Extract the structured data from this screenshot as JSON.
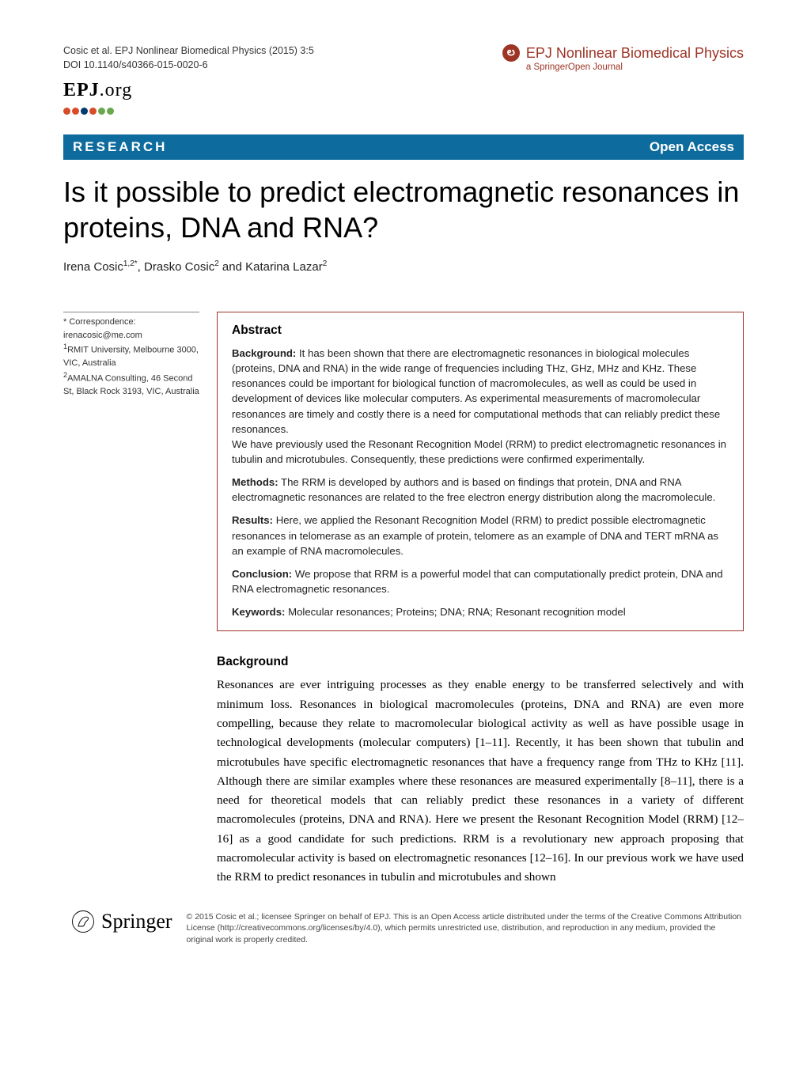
{
  "header": {
    "citation_line1": "Cosic et al. EPJ Nonlinear Biomedical Physics  (2015) 3:5",
    "citation_line2": "DOI 10.1140/s40366-015-0020-6",
    "epj_label": "EPJ",
    "epj_suffix": ".org",
    "journal_icon_glyph": "ల",
    "journal_name": "EPJ Nonlinear Biomedical Physics",
    "journal_subtitle": "a SpringerOpen Journal"
  },
  "dots": {
    "colors": [
      "#d94c2a",
      "#d94c2a",
      "#003a70",
      "#d94c2a",
      "#6aa84f",
      "#6aa84f"
    ]
  },
  "bar": {
    "research": "RESEARCH",
    "open_access": "Open Access"
  },
  "title": "Is it possible to predict electromagnetic resonances in proteins, DNA and RNA?",
  "authors_html": "Irena Cosic<sup>1,2*</sup>, Drasko Cosic<sup>2</sup> and Katarina Lazar<sup>2</sup>",
  "correspondence": {
    "label": "* Correspondence:",
    "email": "irenacosic@me.com",
    "aff1": "<sup>1</sup>RMIT University, Melbourne 3000, VIC, Australia",
    "aff2": "<sup>2</sup>AMALNA Consulting, 46 Second St, Black Rock 3193, VIC, Australia"
  },
  "abstract": {
    "heading": "Abstract",
    "background_label": "Background:",
    "background_text": " It has been shown that there are electromagnetic resonances in biological molecules (proteins, DNA and RNA) in the wide range of frequencies including THz, GHz, MHz and KHz. These resonances could be important for biological function of macromolecules, as well as could be used in development of devices like molecular computers. As experimental measurements of macromolecular resonances are timely and costly there is a need for computational methods that can reliably predict these resonances.",
    "background_text2": "We have previously used the Resonant Recognition Model (RRM) to predict electromagnetic resonances in tubulin and microtubules. Consequently, these predictions were confirmed experimentally.",
    "methods_label": "Methods:",
    "methods_text": " The RRM is developed by authors and is based on findings that protein, DNA and RNA electromagnetic resonances are related to the free electron energy distribution along the macromolecule.",
    "results_label": "Results:",
    "results_text": " Here, we applied the Resonant Recognition Model (RRM) to predict possible electromagnetic resonances in telomerase as an example of protein, telomere as an example of DNA and TERT mRNA as an example of RNA macromolecules.",
    "conclusion_label": "Conclusion:",
    "conclusion_text": " We propose that RRM is a powerful model that can computationally predict protein, DNA and RNA electromagnetic resonances.",
    "keywords_label": "Keywords:",
    "keywords_text": " Molecular resonances; Proteins; DNA; RNA; Resonant recognition model"
  },
  "background": {
    "heading": "Background",
    "text": "Resonances are ever intriguing processes as they enable energy to be transferred selectively and with minimum loss. Resonances in biological macromolecules (proteins, DNA and RNA) are even more compelling, because they relate to macromolecular biological activity as well as have possible usage in technological developments (molecular computers) [1–11]. Recently, it has been shown that tubulin and microtubules have specific electromagnetic resonances that have a frequency range from THz to KHz [11]. Although there are similar examples where these resonances are measured experimentally [8–11], there is a need for theoretical models that can reliably predict these resonances in a variety of different macromolecules (proteins, DNA and RNA). Here we present the Resonant Recognition Model (RRM) [12–16] as a good candidate for such predictions. RRM is a revolutionary new approach proposing that macromolecular activity is based on electromagnetic resonances [12–16]. In our previous work we have used the RRM to predict resonances in tubulin and microtubules and shown"
  },
  "footer": {
    "springer": "Springer",
    "copyright": "© 2015 Cosic et al.; licensee Springer on behalf of EPJ. This is an Open Access article distributed under the terms of the Creative Commons Attribution License (http://creativecommons.org/licenses/by/4.0), which permits unrestricted use, distribution, and reproduction in any medium, provided the original work is properly credited."
  },
  "colors": {
    "bar_bg": "#0d6b9d",
    "abstract_border": "#9e3425",
    "brand": "#9e3425"
  }
}
